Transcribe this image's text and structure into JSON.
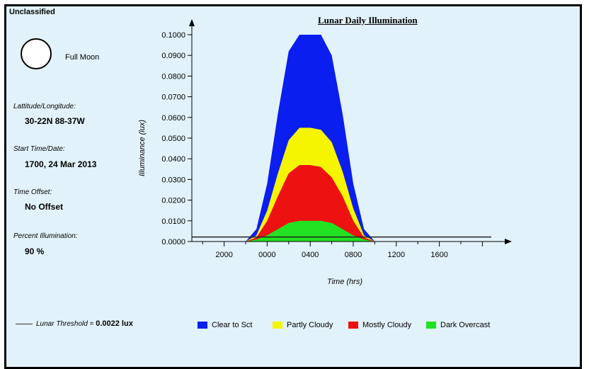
{
  "header": {
    "classification": "Unclassified"
  },
  "sidebar": {
    "moon_phase": "Full Moon",
    "lat_label": "Lattitude/Longitude:",
    "lat_value": "30-22N 88-37W",
    "start_label": "Start Time/Date:",
    "start_value": "1700, 24 Mar 2013",
    "offset_label": "Time Offset:",
    "offset_value": "No Offset",
    "percent_label": "Percent Illumination:",
    "percent_value": "90 %"
  },
  "threshold": {
    "name": "Lunar Threshold",
    "equals": " = ",
    "value": "0.0022 lux"
  },
  "chart_data": {
    "type": "area",
    "title": "Lunar Daily Illumination",
    "xlabel": "Time (hrs)",
    "ylabel": "Illuminance (lux)",
    "x_ticks": [
      "2000",
      "0000",
      "0400",
      "0800",
      "1200",
      "1600"
    ],
    "y_ticks": [
      "0.0000",
      "0.0100",
      "0.0200",
      "0.0300",
      "0.0400",
      "0.0500",
      "0.0600",
      "0.0700",
      "0.0800",
      "0.0900",
      "0.1000"
    ],
    "ylim": [
      0,
      0.1
    ],
    "x_hours_since_start": [
      5.0,
      6.0,
      7.0,
      8.0,
      9.0,
      10.0,
      11.0,
      12.0,
      13.0,
      14.0,
      15.0,
      16.0,
      17.0
    ],
    "series": [
      {
        "name": "Clear to Sct",
        "color": "#0a1ef0",
        "values": [
          0.0,
          0.006,
          0.028,
          0.062,
          0.092,
          0.1,
          0.1,
          0.1,
          0.09,
          0.062,
          0.028,
          0.006,
          0.0
        ]
      },
      {
        "name": "Partly Cloudy",
        "color": "#f5f500",
        "values": [
          0.0,
          0.003,
          0.015,
          0.033,
          0.049,
          0.055,
          0.055,
          0.054,
          0.048,
          0.034,
          0.016,
          0.003,
          0.0
        ]
      },
      {
        "name": "Mostly Cloudy",
        "color": "#ee1111",
        "values": [
          0.0,
          0.002,
          0.01,
          0.022,
          0.033,
          0.037,
          0.037,
          0.036,
          0.031,
          0.022,
          0.01,
          0.002,
          0.0
        ]
      },
      {
        "name": "Dark Overcast",
        "color": "#22e222",
        "values": [
          0.0,
          0.001,
          0.003,
          0.006,
          0.009,
          0.01,
          0.01,
          0.01,
          0.009,
          0.006,
          0.003,
          0.001,
          0.0
        ]
      }
    ],
    "threshold": 0.0022,
    "grid": false,
    "legend": "bottom"
  }
}
